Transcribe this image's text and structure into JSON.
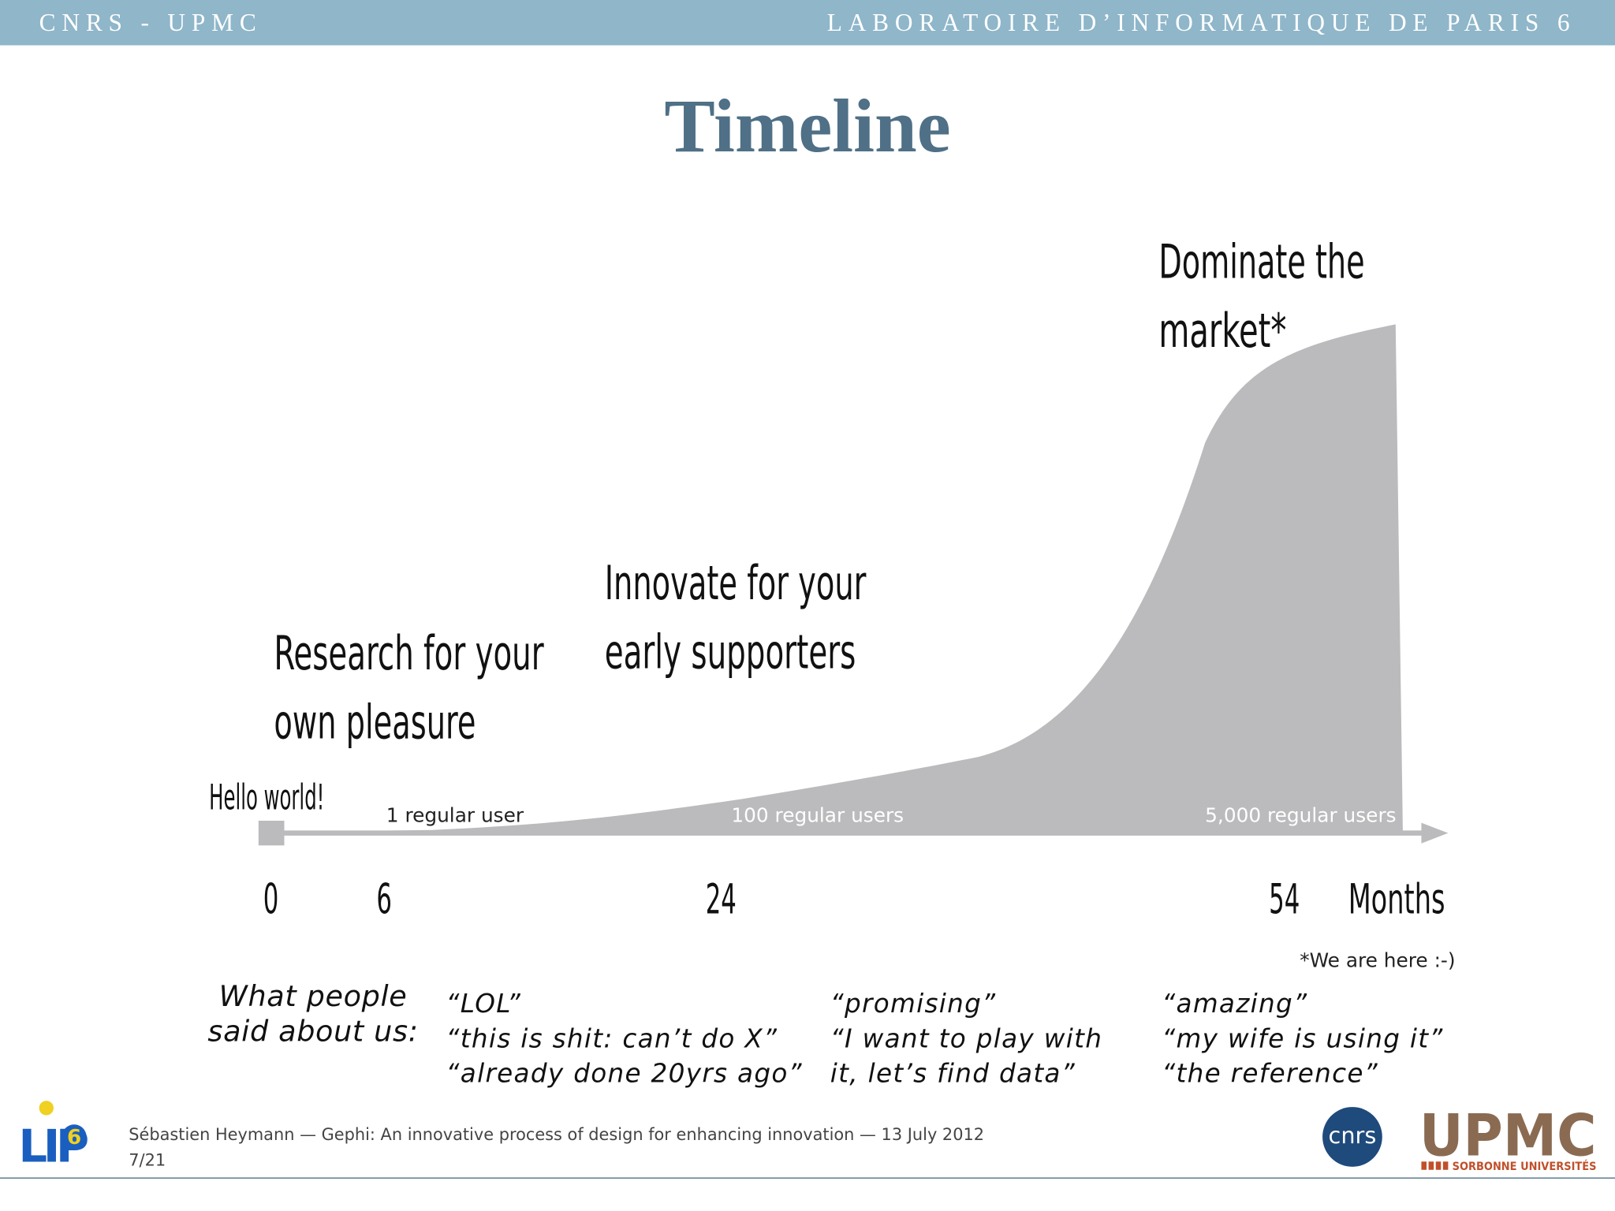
{
  "header": {
    "left": "CNRS - UPMC",
    "right": "LABORATOIRE D’INFORMATIQUE DE PARIS 6"
  },
  "title": "Timeline",
  "timeline": {
    "start": "Hello world!",
    "phases": [
      [
        "Research for your",
        "own pleasure"
      ],
      [
        "Innovate for your",
        "early supporters"
      ],
      [
        "Dominate the",
        "market*"
      ]
    ],
    "users": [
      "1 regular user",
      "100 regular users",
      "5,000 regular users"
    ],
    "ticks": [
      "0",
      "6",
      "24",
      "54"
    ],
    "unit": "Months",
    "note": "*We are here :-)"
  },
  "quotes": {
    "label": [
      "What people",
      "said about us:"
    ],
    "groups": [
      [
        "“LOL”",
        "“this is shit: can’t do X”",
        "“already done 20yrs ago”"
      ],
      [
        "“promising”",
        "“I want to play with",
        "it, let’s find data”"
      ],
      [
        "“amazing”",
        "“my wife is using it”",
        "“the reference”"
      ]
    ]
  },
  "footer": {
    "credit": "Sébastien Heymann — Gephi: An innovative process of design for enhancing innovation — 13 July 2012",
    "page": "7/21",
    "logos": {
      "lip": "LIP",
      "lip_digit": "6",
      "cnrs": "cnrs",
      "upmc": "UPMC",
      "sorbonne": "SORBONNE UNIVERSITÉS"
    }
  }
}
